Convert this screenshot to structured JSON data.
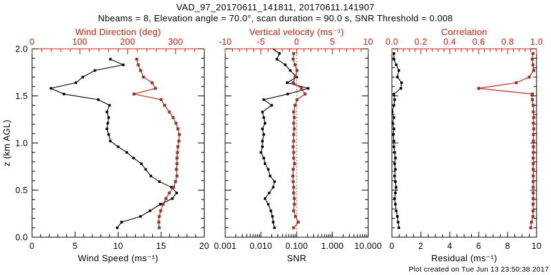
{
  "title": "VAD_97_20170611_141811, 20170611.141907",
  "subtitle": "Nbeams = 8, Elevation angle = 70.0°, scan duration = 90.0 s, SNR Threshold = 0.008",
  "footer": "Plot created on Tue Jun 13 23:50:38 2017",
  "colors": {
    "axis_red": "#e51400",
    "line_red": "#c3281c",
    "marker_red": "#993526",
    "black": "#000000",
    "background": "#ffffff"
  },
  "chart_data": {
    "type": "line",
    "description": "Three-panel VAD vertical profile plot; each panel has a black series on the bottom axis and a red series on the top axis, plotted against height z.",
    "ylabel": "z (km AGL)",
    "ylim": [
      0,
      2
    ],
    "yticks": {
      "values": [
        0,
        0.5,
        1.0,
        1.5,
        2.0
      ],
      "labels": [
        "0.0",
        "0.5",
        "1.0",
        "1.5",
        "2.0"
      ],
      "minor_step": 0.1
    },
    "panels": [
      {
        "name": "wind",
        "bottom_axis": {
          "label": "Wind Speed (ms⁻¹)",
          "lim": [
            0,
            20
          ],
          "scale": "linear",
          "tick_values": [
            0,
            5,
            10,
            15,
            20
          ],
          "tick_labels": [
            "0",
            "5",
            "10",
            "15",
            "20"
          ],
          "minor_step": 1,
          "color": "black"
        },
        "top_axis": {
          "label": "Wind Direction (deg)",
          "lim": [
            0,
            360
          ],
          "scale": "linear",
          "tick_values": [
            0,
            100,
            200,
            300
          ],
          "tick_labels": [
            "0",
            "100",
            "200",
            "300"
          ],
          "minor_step": 20,
          "color": "red"
        },
        "reference_line": null,
        "series": [
          {
            "name": "wind-speed",
            "axis": "bottom",
            "color": "black",
            "z": [
              0.1,
              0.16,
              0.22,
              0.28,
              0.35,
              0.41,
              0.47,
              0.53,
              0.59,
              0.65,
              0.72,
              0.78,
              0.84,
              0.9,
              0.96,
              1.02,
              1.09,
              1.15,
              1.21,
              1.27,
              1.33,
              1.4,
              1.46,
              1.52,
              1.58,
              1.64,
              1.7,
              1.77,
              1.83,
              1.89
            ],
            "values": [
              9.9,
              10.4,
              12.6,
              13.7,
              14.9,
              16.3,
              16.8,
              16.2,
              14.8,
              13.8,
              13.2,
              12.7,
              11.8,
              11.0,
              10.0,
              9.1,
              8.9,
              8.7,
              8.8,
              8.9,
              8.7,
              9.0,
              7.7,
              3.7,
              2.2,
              5.1,
              5.9,
              7.3,
              10.6,
              9.1
            ]
          },
          {
            "name": "wind-direction",
            "axis": "top",
            "color": "red",
            "z": [
              0.1,
              0.16,
              0.22,
              0.28,
              0.35,
              0.41,
              0.47,
              0.53,
              0.59,
              0.65,
              0.72,
              0.78,
              0.84,
              0.9,
              0.96,
              1.02,
              1.09,
              1.15,
              1.21,
              1.27,
              1.33,
              1.4,
              1.46,
              1.52,
              1.58,
              1.64,
              1.7,
              1.77,
              1.83,
              1.89
            ],
            "values": [
              266,
              265,
              266,
              269,
              274,
              280,
              287,
              296,
              300,
              303,
              302,
              303,
              303,
              304,
              305,
              307,
              308,
              305,
              301,
              295,
              287,
              277,
              270,
              213,
              258,
              251,
              233,
              227,
              222,
              219
            ]
          }
        ]
      },
      {
        "name": "snr-vertical-velocity",
        "bottom_axis": {
          "label": "SNR",
          "lim": [
            0.001,
            10
          ],
          "scale": "log",
          "tick_values": [
            0.001,
            0.01,
            0.1,
            1,
            10
          ],
          "tick_labels": [
            "0.001",
            "0.010",
            "0.100",
            "1.000",
            "10.000"
          ],
          "minor_step": null,
          "color": "black"
        },
        "top_axis": {
          "label": "Vertical velocity (ms⁻¹)",
          "lim": [
            -10,
            10
          ],
          "scale": "linear",
          "tick_values": [
            -10,
            -5,
            0,
            5,
            10
          ],
          "tick_labels": [
            "-10",
            "-5",
            "0",
            "5",
            "10"
          ],
          "minor_step": 1,
          "color": "red"
        },
        "reference_line": {
          "axis": "top",
          "value": 0,
          "style": "dotted",
          "color": "red"
        },
        "series": [
          {
            "name": "snr",
            "axis": "bottom",
            "color": "black",
            "z": [
              0.1,
              0.16,
              0.22,
              0.28,
              0.35,
              0.41,
              0.47,
              0.53,
              0.59,
              0.65,
              0.72,
              0.78,
              0.84,
              0.9,
              0.96,
              1.02,
              1.09,
              1.15,
              1.21,
              1.27,
              1.33,
              1.4,
              1.46,
              1.52,
              1.58,
              1.64,
              1.7,
              1.77,
              1.83,
              1.89,
              1.95,
              2.02
            ],
            "values": [
              0.024,
              0.022,
              0.021,
              0.019,
              0.016,
              0.013,
              0.017,
              0.022,
              0.024,
              0.018,
              0.016,
              0.013,
              0.012,
              0.01,
              0.011,
              0.011,
              0.012,
              0.011,
              0.013,
              0.012,
              0.011,
              0.02,
              0.012,
              0.056,
              0.21,
              0.054,
              0.1,
              0.066,
              0.048,
              0.028,
              0.033,
              0.018
            ]
          },
          {
            "name": "vertical-velocity",
            "axis": "top",
            "color": "red",
            "z": [
              0.1,
              0.16,
              0.22,
              0.28,
              0.35,
              0.41,
              0.47,
              0.53,
              0.59,
              0.65,
              0.72,
              0.78,
              0.84,
              0.9,
              0.96,
              1.02,
              1.09,
              1.15,
              1.21,
              1.27,
              1.33,
              1.4,
              1.46,
              1.52,
              1.58,
              1.64,
              1.7,
              1.77,
              1.83,
              1.89,
              1.95
            ],
            "values": [
              -0.42,
              0.23,
              -0.17,
              -0.42,
              -0.33,
              -0.33,
              -0.42,
              -0.42,
              -0.49,
              -0.53,
              -0.49,
              -0.3,
              -0.42,
              -0.42,
              -0.49,
              -0.42,
              -0.42,
              -0.33,
              -0.42,
              -0.33,
              -0.42,
              -0.23,
              0.05,
              1.17,
              0.66,
              -0.49,
              -0.23,
              0.05,
              -0.23,
              -0.49,
              -0.42
            ]
          }
        ]
      },
      {
        "name": "residual-correlation",
        "bottom_axis": {
          "label": "Residual (ms⁻¹)",
          "lim": [
            0,
            10
          ],
          "scale": "linear",
          "tick_values": [
            0,
            2,
            4,
            6,
            8,
            10
          ],
          "tick_labels": [
            "0",
            "2",
            "4",
            "6",
            "8",
            "10"
          ],
          "minor_step": 0.5,
          "color": "black"
        },
        "top_axis": {
          "label": "Correlation",
          "lim": [
            0,
            1
          ],
          "scale": "linear",
          "tick_values": [
            0,
            0.2,
            0.4,
            0.6,
            0.8,
            1.0
          ],
          "tick_labels": [
            "0.0",
            "0.2",
            "0.4",
            "0.6",
            "0.8",
            "1.0"
          ],
          "minor_step": 0.04,
          "color": "red"
        },
        "reference_line": null,
        "series": [
          {
            "name": "residual",
            "axis": "bottom",
            "color": "black",
            "z": [
              0.1,
              0.16,
              0.22,
              0.28,
              0.35,
              0.41,
              0.47,
              0.53,
              0.59,
              0.65,
              0.72,
              0.78,
              0.84,
              0.9,
              0.96,
              1.02,
              1.09,
              1.15,
              1.21,
              1.27,
              1.33,
              1.4,
              1.46,
              1.52,
              1.58,
              1.64,
              1.7,
              1.77,
              1.83,
              1.89,
              1.95
            ],
            "values": [
              0.48,
              0.43,
              0.38,
              0.3,
              0.24,
              0.19,
              0.24,
              0.29,
              0.24,
              0.19,
              0.24,
              0.19,
              0.24,
              0.19,
              0.14,
              0.14,
              0.1,
              0.14,
              0.05,
              0.14,
              0.02,
              0.14,
              0.19,
              0.14,
              0.62,
              0.67,
              0.38,
              0.48,
              0.3,
              0.14,
              0.14
            ]
          },
          {
            "name": "correlation",
            "axis": "top",
            "color": "red",
            "z": [
              0.1,
              0.16,
              0.22,
              0.28,
              0.35,
              0.41,
              0.47,
              0.53,
              0.59,
              0.65,
              0.72,
              0.78,
              0.84,
              0.9,
              0.96,
              1.02,
              1.09,
              1.15,
              1.21,
              1.27,
              1.33,
              1.4,
              1.46,
              1.52,
              1.58,
              1.64,
              1.7,
              1.77,
              1.83,
              1.89,
              1.95
            ],
            "values": [
              0.96,
              0.965,
              0.975,
              0.976,
              0.976,
              0.977,
              0.977,
              0.977,
              0.977,
              0.977,
              0.977,
              0.977,
              0.977,
              0.978,
              0.978,
              0.978,
              0.978,
              0.98,
              0.978,
              0.98,
              0.978,
              0.977,
              0.971,
              0.971,
              0.6,
              0.86,
              0.95,
              0.98,
              0.975,
              0.971,
              0.975
            ]
          }
        ]
      }
    ]
  }
}
